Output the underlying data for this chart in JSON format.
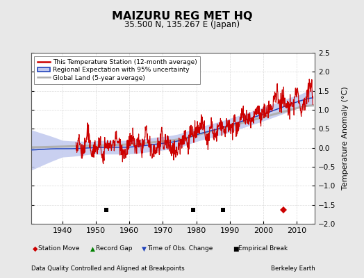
{
  "title": "MAIZURU REG MET HQ",
  "subtitle": "35.500 N, 135.267 E (Japan)",
  "ylabel": "Temperature Anomaly (°C)",
  "footer_left": "Data Quality Controlled and Aligned at Breakpoints",
  "footer_right": "Berkeley Earth",
  "xlim": [
    1930.5,
    2015.5
  ],
  "ylim": [
    -2.0,
    2.5
  ],
  "yticks": [
    -2,
    -1.5,
    -1,
    -0.5,
    0,
    0.5,
    1,
    1.5,
    2,
    2.5
  ],
  "xticks": [
    1940,
    1950,
    1960,
    1970,
    1980,
    1990,
    2000,
    2010
  ],
  "bg_color": "#e8e8e8",
  "plot_bg_color": "#ffffff",
  "empirical_breaks": [
    1953,
    1979,
    1988
  ],
  "station_moves": [
    2006
  ],
  "legend_labels": [
    "This Temperature Station (12-month average)",
    "Regional Expectation with 95% uncertainty",
    "Global Land (5-year average)"
  ],
  "station_color": "#cc0000",
  "regional_color": "#2244bb",
  "regional_fill_color": "#c0c8ee",
  "global_color": "#b0b0b0",
  "grid_color": "#d0d0d0",
  "marker_y": -1.63
}
